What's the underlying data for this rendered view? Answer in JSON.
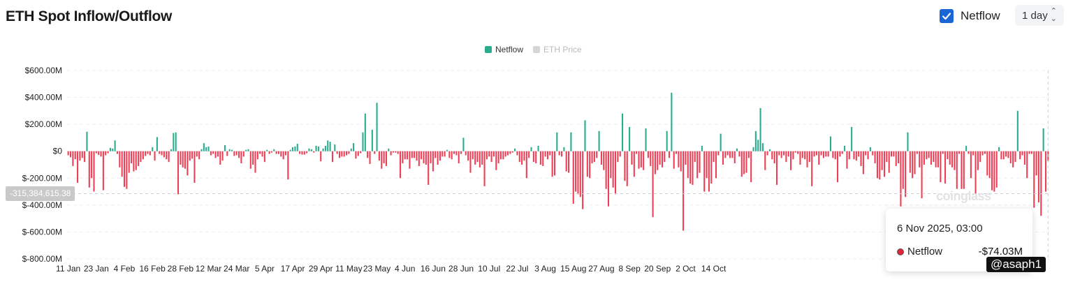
{
  "header": {
    "title": "ETH Spot Inflow/Outflow",
    "netflow_toggle_label": "Netflow",
    "interval_value": "1 day"
  },
  "legend": [
    {
      "label": "Netflow",
      "color": "#2aab8e",
      "active": true
    },
    {
      "label": "ETH Price",
      "color": "#cccccc",
      "active": false
    }
  ],
  "cursor_value": "-315,384,615.38",
  "tooltip": {
    "date": "6 Nov 2025, 03:00",
    "series": "Netflow",
    "value": "-$74.03M"
  },
  "watermark": "coinglass",
  "handle": "@asaph1",
  "colors": {
    "positive": "#2aab8e",
    "negative": "#ee3e55",
    "grid": "#eeeeee",
    "axis_text": "#222222"
  },
  "chart_data": {
    "type": "bar",
    "title": "ETH Spot Inflow/Outflow",
    "series_name": "Netflow",
    "unit": "USD (millions)",
    "ylim": [
      -800,
      600
    ],
    "y_ticks": [
      600,
      400,
      200,
      0,
      -200,
      -400,
      -600,
      -800
    ],
    "y_tick_labels": [
      "$600.00M",
      "$400.00M",
      "$200.00M",
      "$0",
      "$-200.00M",
      "$-400.00M",
      "$-600.00M",
      "$-800.00M"
    ],
    "x_tick_labels": [
      "11 Jan",
      "23 Jan",
      "4 Feb",
      "16 Feb",
      "28 Feb",
      "12 Mar",
      "24 Mar",
      "5 Apr",
      "17 Apr",
      "29 Apr",
      "11 May",
      "23 May",
      "4 Jun",
      "16 Jun",
      "28 Jun",
      "10 Jul",
      "22 Jul",
      "3 Aug",
      "15 Aug",
      "27 Aug",
      "8 Sep",
      "20 Sep",
      "2 Oct",
      "14 Oct"
    ],
    "start_date": "2025-01-11",
    "values": [
      -30,
      -45,
      -110,
      -60,
      -235,
      -70,
      -50,
      -80,
      145,
      -270,
      -200,
      -300,
      -15,
      -28,
      -40,
      -290,
      -30,
      -15,
      25,
      20,
      80,
      -20,
      -120,
      -190,
      -265,
      -280,
      -160,
      -90,
      -150,
      -140,
      -110,
      -80,
      -60,
      -35,
      -20,
      -30,
      30,
      -70,
      105,
      -20,
      -30,
      -45,
      -60,
      -80,
      15,
      135,
      140,
      -320,
      -100,
      -120,
      -130,
      -180,
      -70,
      -55,
      -235,
      -40,
      -60,
      15,
      60,
      30,
      35,
      -30,
      -20,
      -50,
      -40,
      -100,
      -70,
      45,
      -35,
      15,
      10,
      -35,
      -30,
      -50,
      -90,
      -40,
      10,
      15,
      -130,
      -100,
      -160,
      -60,
      -20,
      -40,
      -80,
      10,
      -20,
      -10,
      15,
      -20,
      -20,
      -40,
      -60,
      -30,
      -210,
      10,
      30,
      35,
      55,
      -20,
      -25,
      -25,
      -15,
      20,
      15,
      -10,
      40,
      35,
      -75,
      20,
      40,
      80,
      70,
      -80,
      50,
      -20,
      -50,
      -40,
      -40,
      -30,
      -20,
      20,
      60,
      -55,
      -35,
      -15,
      140,
      280,
      -50,
      -95,
      160,
      -20,
      360,
      -70,
      -130,
      -90,
      -110,
      20,
      -30,
      -10,
      -10,
      -20,
      -200,
      -90,
      -60,
      -60,
      -130,
      -50,
      -50,
      -70,
      -110,
      -60,
      -90,
      -100,
      -250,
      -90,
      -150,
      -50,
      -100,
      -70,
      -40,
      -40,
      10,
      -50,
      -60,
      -20,
      -30,
      -90,
      -20,
      100,
      -30,
      -70,
      -160,
      -60,
      -100,
      -80,
      -120,
      -100,
      -260,
      -60,
      -40,
      -80,
      -40,
      -140,
      -90,
      -60,
      -60,
      -40,
      -30,
      -20,
      -10,
      20,
      -30,
      -80,
      -100,
      -70,
      -200,
      -50,
      30,
      -80,
      -90,
      40,
      -100,
      -110,
      -40,
      -60,
      -30,
      -190,
      -180,
      140,
      -30,
      -40,
      30,
      -150,
      -160,
      140,
      -390,
      -300,
      -320,
      -340,
      -430,
      230,
      -190,
      -200,
      -90,
      -80,
      -50,
      150,
      -100,
      -140,
      -280,
      -410,
      -200,
      -270,
      -320,
      -80,
      -40,
      280,
      -220,
      -260,
      180,
      -100,
      -190,
      -20,
      -130,
      -120,
      -140,
      170,
      -50,
      -110,
      -490,
      -170,
      -140,
      -100,
      -120,
      -80,
      150,
      -50,
      435,
      -130,
      -20,
      -120,
      -150,
      -590,
      -100,
      -200,
      -240,
      -250,
      -80,
      -200,
      -160,
      40,
      -300,
      -200,
      -300,
      -240,
      -80,
      -200,
      -30,
      130,
      -100,
      -50,
      -30,
      -50,
      -50,
      -90,
      20,
      -40,
      -190,
      -170,
      -160,
      -50,
      -230,
      30,
      150,
      85,
      320,
      60,
      -140,
      -30,
      15,
      -60,
      -90,
      -250,
      -30,
      -50,
      -30,
      -80,
      -40,
      -140,
      -60,
      -10,
      -20,
      -100,
      -50,
      -60,
      -120,
      -80,
      -260,
      -40,
      -30,
      -100,
      -30,
      -50,
      -40,
      -40,
      110,
      -50,
      -60,
      -230,
      -40,
      -20,
      40,
      -130,
      -60,
      180,
      -60,
      -70,
      -40,
      -110,
      -170,
      -30,
      -60,
      30,
      -30,
      -90,
      -200,
      -210,
      -140,
      -190,
      -80,
      -160,
      -40,
      -40,
      -110,
      -90,
      -410,
      -280,
      -340,
      140,
      -160,
      -200,
      -170,
      -20,
      -120,
      -350,
      -100,
      -60,
      -50,
      -100,
      -80,
      -120,
      -120,
      -230,
      -20,
      -240,
      -60,
      -100,
      -120,
      -140,
      -280,
      -20,
      -280,
      -280,
      40,
      -20,
      -200,
      -30,
      -320,
      -140,
      -80,
      -30,
      -20,
      -180,
      -200,
      -290,
      -300,
      -270,
      30,
      -60,
      -60,
      -40,
      -50,
      -90,
      -120,
      -80,
      300,
      -60,
      -30,
      -100,
      -200,
      -20,
      -20,
      -420,
      -180,
      -380,
      -480,
      170,
      -300,
      -74
    ]
  }
}
